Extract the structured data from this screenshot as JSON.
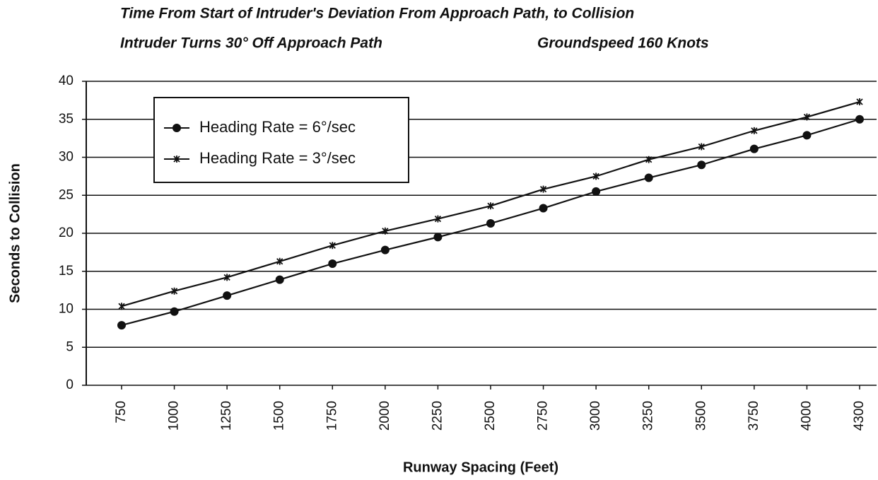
{
  "chart_data": {
    "type": "line",
    "title": "Time From Start of Intruder's Deviation From Approach Path, to Collision",
    "subtitles": [
      "Intruder Turns 30° Off Approach Path",
      "Groundspeed 160 Knots"
    ],
    "x_label": "Runway Spacing (Feet)",
    "y_label": "Seconds to Collision",
    "categories": [
      "750",
      "1000",
      "1250",
      "1500",
      "1750",
      "2000",
      "2250",
      "2500",
      "2750",
      "3000",
      "3250",
      "3500",
      "3750",
      "4000",
      "4300"
    ],
    "series": [
      {
        "name": "Heading Rate = 6°/sec",
        "color": "#111111",
        "marker": "circle",
        "values": [
          7.9,
          9.7,
          11.8,
          13.9,
          16.0,
          17.8,
          19.5,
          21.3,
          23.3,
          25.5,
          27.3,
          29.0,
          31.1,
          32.9,
          35.0
        ]
      },
      {
        "name": "Heading Rate = 3°/sec",
        "color": "#111111",
        "marker": "star",
        "values": [
          10.4,
          12.4,
          14.2,
          16.3,
          18.4,
          20.3,
          21.9,
          23.6,
          25.8,
          27.5,
          29.7,
          31.4,
          33.5,
          35.3,
          37.3
        ]
      }
    ],
    "ylim": [
      0,
      40
    ],
    "yticks": [
      0,
      5,
      10,
      15,
      20,
      25,
      30,
      35,
      40
    ],
    "grid": true
  }
}
